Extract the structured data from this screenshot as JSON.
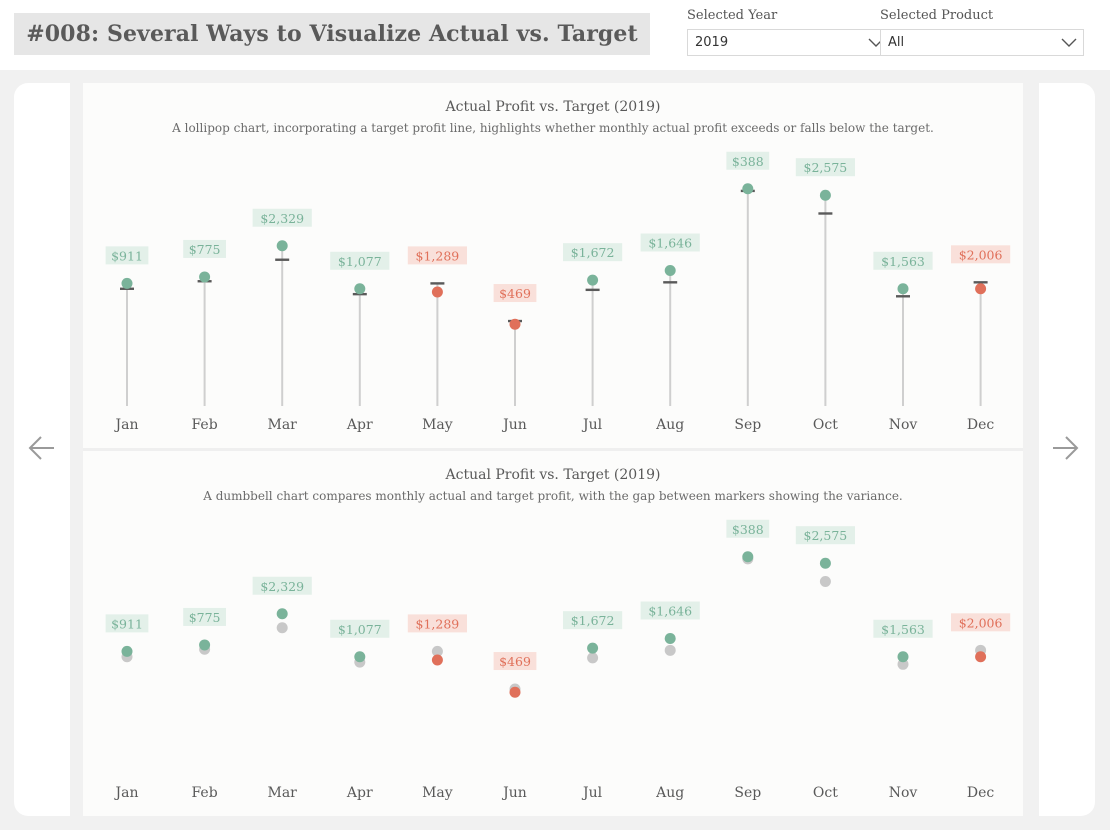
{
  "header": {
    "title": "#008: Several Ways to Visualize Actual vs. Target"
  },
  "filters": {
    "year": {
      "label": "Selected Year",
      "value": "2019"
    },
    "product": {
      "label": "Selected Product",
      "value": "All"
    }
  },
  "colors": {
    "above": "#7ab39a",
    "above_fill": "#e3f0e9",
    "below": "#e0705a",
    "below_fill": "#f9e0da",
    "target_marker": "#5a5a5a",
    "target_dot": "#c8c8c8",
    "stem": "#cfcfcf"
  },
  "chart_data": [
    {
      "type": "lollipop",
      "title": "Actual Profit vs. Target (2019)",
      "subtitle": "A lollipop chart, incorporating a target profit line, highlights whether monthly actual profit exceeds or falls below the target.",
      "categories": [
        "Jan",
        "Feb",
        "Mar",
        "Apr",
        "May",
        "Jun",
        "Jul",
        "Aug",
        "Sep",
        "Oct",
        "Nov",
        "Dec"
      ],
      "series": [
        {
          "name": "Actual Profit",
          "values": [
            11400,
            12000,
            14900,
            10900,
            10600,
            7600,
            11700,
            12600,
            20200,
            19600,
            10900,
            10900
          ]
        },
        {
          "name": "Target Profit",
          "values": [
            10900,
            11600,
            13600,
            10400,
            11400,
            7900,
            10800,
            11500,
            20000,
            17900,
            10200,
            11500
          ]
        }
      ],
      "labels": [
        "$911",
        "$775",
        "$2,329",
        "$1,077",
        "$1,289",
        "$469",
        "$1,672",
        "$1,646",
        "$388",
        "$2,575",
        "$1,563",
        "$2,006"
      ],
      "status": [
        "above",
        "above",
        "above",
        "above",
        "below",
        "below",
        "above",
        "above",
        "above",
        "above",
        "above",
        "below"
      ],
      "ylim": [
        0,
        21200
      ]
    },
    {
      "type": "dumbbell",
      "title": "Actual Profit vs. Target (2019)",
      "subtitle": "A dumbbell chart compares monthly actual and target profit, with the gap between markers showing the variance.",
      "categories": [
        "Jan",
        "Feb",
        "Mar",
        "Apr",
        "May",
        "Jun",
        "Jul",
        "Aug",
        "Sep",
        "Oct",
        "Nov",
        "Dec"
      ],
      "series": [
        {
          "name": "Actual Profit",
          "values": [
            11400,
            12000,
            14900,
            10900,
            10600,
            7600,
            11700,
            12600,
            20200,
            19600,
            10900,
            10900
          ]
        },
        {
          "name": "Target Profit",
          "values": [
            10900,
            11600,
            13600,
            10400,
            11400,
            7900,
            10800,
            11500,
            20000,
            17900,
            10200,
            11500
          ]
        }
      ],
      "labels": [
        "$911",
        "$775",
        "$2,329",
        "$1,077",
        "$1,289",
        "$469",
        "$1,672",
        "$1,646",
        "$388",
        "$2,575",
        "$1,563",
        "$2,006"
      ],
      "status": [
        "above",
        "above",
        "above",
        "above",
        "below",
        "below",
        "above",
        "above",
        "above",
        "above",
        "above",
        "below"
      ],
      "ylim": [
        0,
        21200
      ]
    }
  ]
}
